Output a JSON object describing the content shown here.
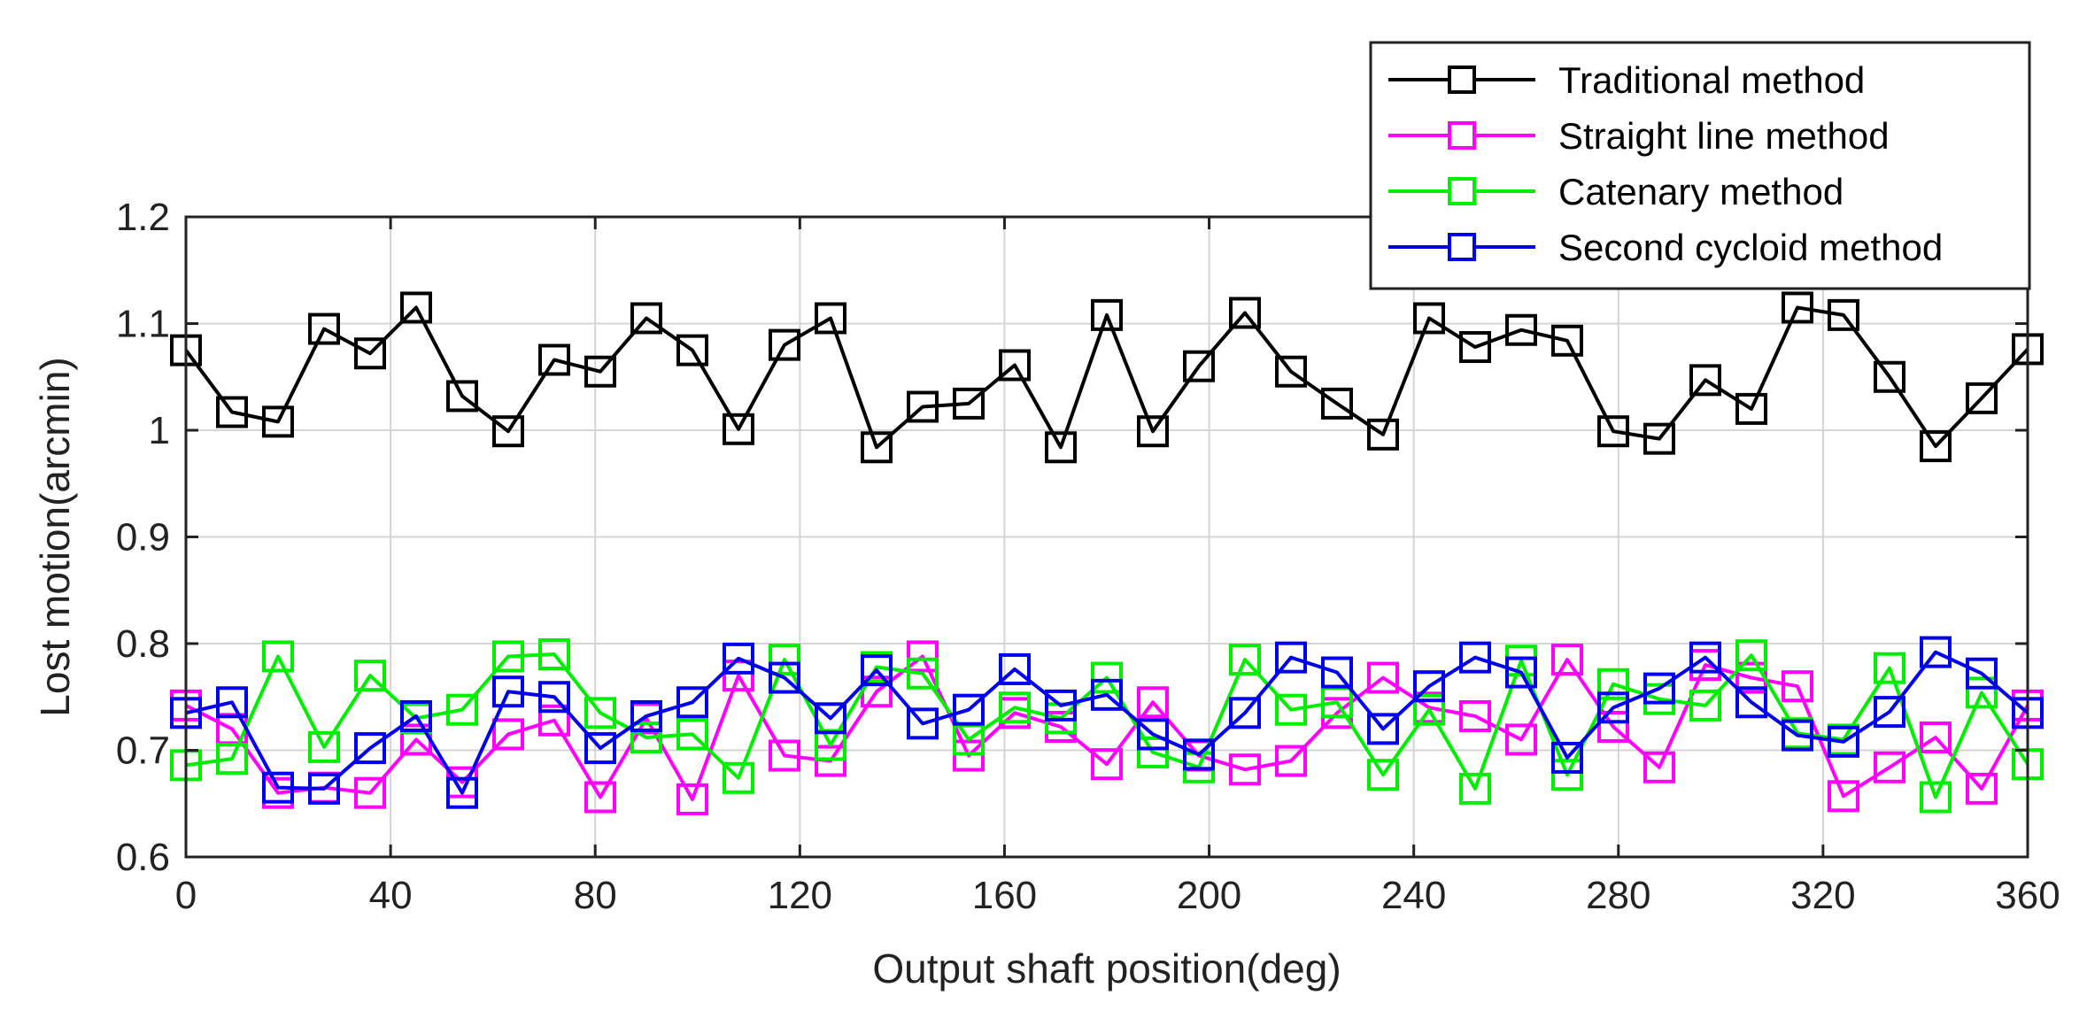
{
  "chart_data": {
    "type": "line",
    "title": "",
    "xlabel": "Output shaft position(deg)",
    "ylabel": "Lost motion(arcmin)",
    "xlim": [
      0,
      360
    ],
    "ylim": [
      0.6,
      1.2
    ],
    "xticks": [
      0,
      40,
      80,
      120,
      160,
      200,
      240,
      280,
      320,
      360
    ],
    "yticks": [
      0.6,
      0.7,
      0.8,
      0.9,
      1.0,
      1.1,
      1.2
    ],
    "xtick_labels": [
      "0",
      "40",
      "80",
      "120",
      "160",
      "200",
      "240",
      "280",
      "320",
      "360"
    ],
    "ytick_labels": [
      "0.6",
      "0.7",
      "0.8",
      "0.9",
      "1",
      "1.1",
      "1.2"
    ],
    "grid": true,
    "legend_position": "top-right",
    "marker": "square",
    "x": [
      0,
      9,
      18,
      27,
      36,
      45,
      54,
      63,
      72,
      81,
      90,
      99,
      108,
      117,
      126,
      135,
      144,
      153,
      162,
      171,
      180,
      189,
      198,
      207,
      216,
      225,
      234,
      243,
      252,
      261,
      270,
      279,
      288,
      297,
      306,
      315,
      324,
      333,
      342,
      351,
      360
    ],
    "series": [
      {
        "name": "Traditional method",
        "color": "#000000",
        "values": [
          1.075,
          1.017,
          1.008,
          1.095,
          1.072,
          1.115,
          1.032,
          0.999,
          1.066,
          1.055,
          1.105,
          1.075,
          1.001,
          1.08,
          1.105,
          0.984,
          1.022,
          1.025,
          1.061,
          0.984,
          1.108,
          0.999,
          1.06,
          1.11,
          1.055,
          1.025,
          0.996,
          1.105,
          1.078,
          1.094,
          1.084,
          0.999,
          0.992,
          1.047,
          1.02,
          1.115,
          1.108,
          1.05,
          0.985,
          1.03,
          1.076
        ]
      },
      {
        "name": "Straight line method",
        "color": "#ff00ff",
        "values": [
          0.742,
          0.72,
          0.66,
          0.665,
          0.66,
          0.71,
          0.67,
          0.715,
          0.728,
          0.656,
          0.73,
          0.654,
          0.77,
          0.695,
          0.69,
          0.755,
          0.788,
          0.695,
          0.735,
          0.722,
          0.687,
          0.745,
          0.695,
          0.682,
          0.69,
          0.735,
          0.768,
          0.74,
          0.732,
          0.71,
          0.785,
          0.722,
          0.684,
          0.78,
          0.768,
          0.76,
          0.657,
          0.684,
          0.712,
          0.664,
          0.742
        ]
      },
      {
        "name": "Catenary method",
        "color": "#00ee00",
        "values": [
          0.686,
          0.692,
          0.788,
          0.703,
          0.77,
          0.73,
          0.738,
          0.788,
          0.79,
          0.735,
          0.712,
          0.715,
          0.674,
          0.785,
          0.705,
          0.778,
          0.772,
          0.71,
          0.74,
          0.73,
          0.768,
          0.698,
          0.684,
          0.785,
          0.738,
          0.745,
          0.677,
          0.738,
          0.664,
          0.784,
          0.677,
          0.762,
          0.748,
          0.742,
          0.789,
          0.716,
          0.71,
          0.777,
          0.656,
          0.754,
          0.687
        ]
      },
      {
        "name": "Second cycloid method",
        "color": "#0000ee",
        "values": [
          0.735,
          0.745,
          0.665,
          0.664,
          0.702,
          0.732,
          0.66,
          0.755,
          0.75,
          0.702,
          0.732,
          0.745,
          0.786,
          0.768,
          0.73,
          0.775,
          0.725,
          0.738,
          0.776,
          0.742,
          0.752,
          0.715,
          0.696,
          0.735,
          0.787,
          0.773,
          0.72,
          0.76,
          0.787,
          0.773,
          0.693,
          0.74,
          0.758,
          0.787,
          0.745,
          0.714,
          0.708,
          0.736,
          0.792,
          0.772,
          0.735
        ]
      }
    ]
  }
}
